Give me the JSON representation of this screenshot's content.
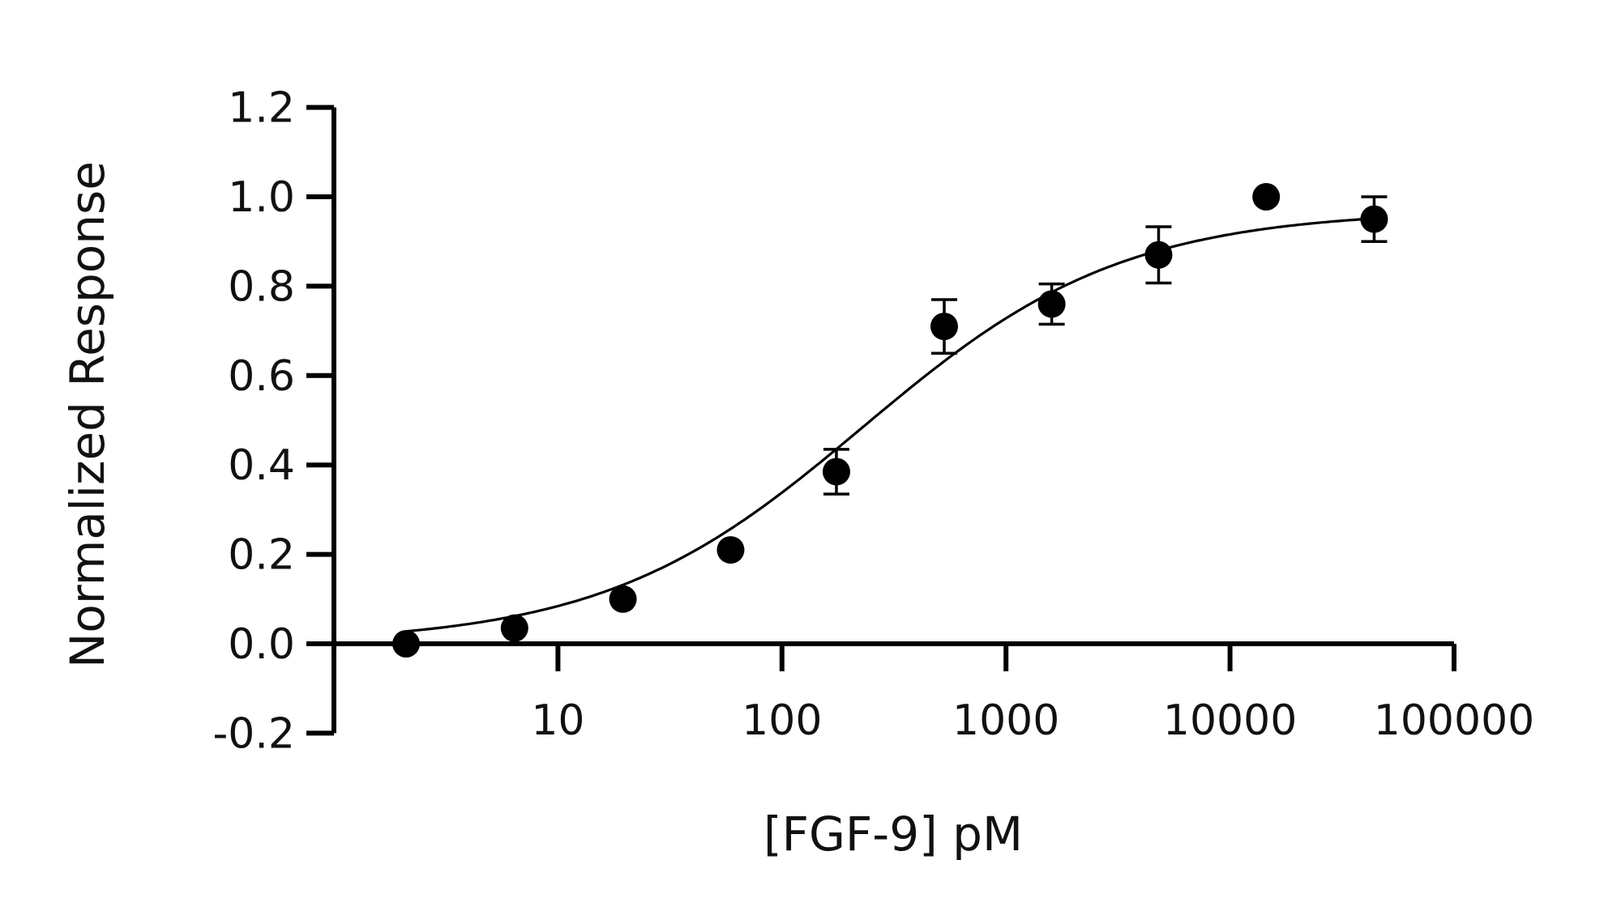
{
  "chart_data": {
    "type": "scatter",
    "xlabel": "[FGF-9] pM",
    "ylabel": "Normalized Response",
    "xscale": "log",
    "xlim": [
      1,
      100000
    ],
    "ylim": [
      -0.2,
      1.2
    ],
    "x_ticks": [
      {
        "value": 10,
        "label": "10"
      },
      {
        "value": 100,
        "label": "100"
      },
      {
        "value": 1000,
        "label": "1000"
      },
      {
        "value": 10000,
        "label": "10000"
      },
      {
        "value": 100000,
        "label": "100000"
      }
    ],
    "y_ticks": [
      {
        "value": -0.2,
        "label": "-0.2"
      },
      {
        "value": 0.0,
        "label": "0.0"
      },
      {
        "value": 0.2,
        "label": "0.2"
      },
      {
        "value": 0.4,
        "label": "0.4"
      },
      {
        "value": 0.6,
        "label": "0.6"
      },
      {
        "value": 0.8,
        "label": "0.8"
      },
      {
        "value": 1.0,
        "label": "1.0"
      },
      {
        "value": 1.2,
        "label": "1.2"
      }
    ],
    "grid": false,
    "legend": "none",
    "series": [
      {
        "points": [
          {
            "x": 2.1,
            "y": 0.0,
            "err": 0
          },
          {
            "x": 6.4,
            "y": 0.035,
            "err": 0
          },
          {
            "x": 19.5,
            "y": 0.1,
            "err": 0
          },
          {
            "x": 59,
            "y": 0.21,
            "err": 0
          },
          {
            "x": 175,
            "y": 0.385,
            "err": 0.05
          },
          {
            "x": 530,
            "y": 0.71,
            "err": 0.06
          },
          {
            "x": 1600,
            "y": 0.76,
            "err": 0.045
          },
          {
            "x": 4800,
            "y": 0.87,
            "err": 0.063
          },
          {
            "x": 14500,
            "y": 1.0,
            "err": 0
          },
          {
            "x": 44000,
            "y": 0.95,
            "err": 0.05
          }
        ],
        "fit": {
          "model": "four-parameter logistic",
          "bottom": 0.0,
          "top": 0.97,
          "ec50": 230,
          "hill": 0.75
        }
      }
    ],
    "colors": {
      "marker": "#000000",
      "line": "#000000",
      "axis": "#000000"
    }
  }
}
